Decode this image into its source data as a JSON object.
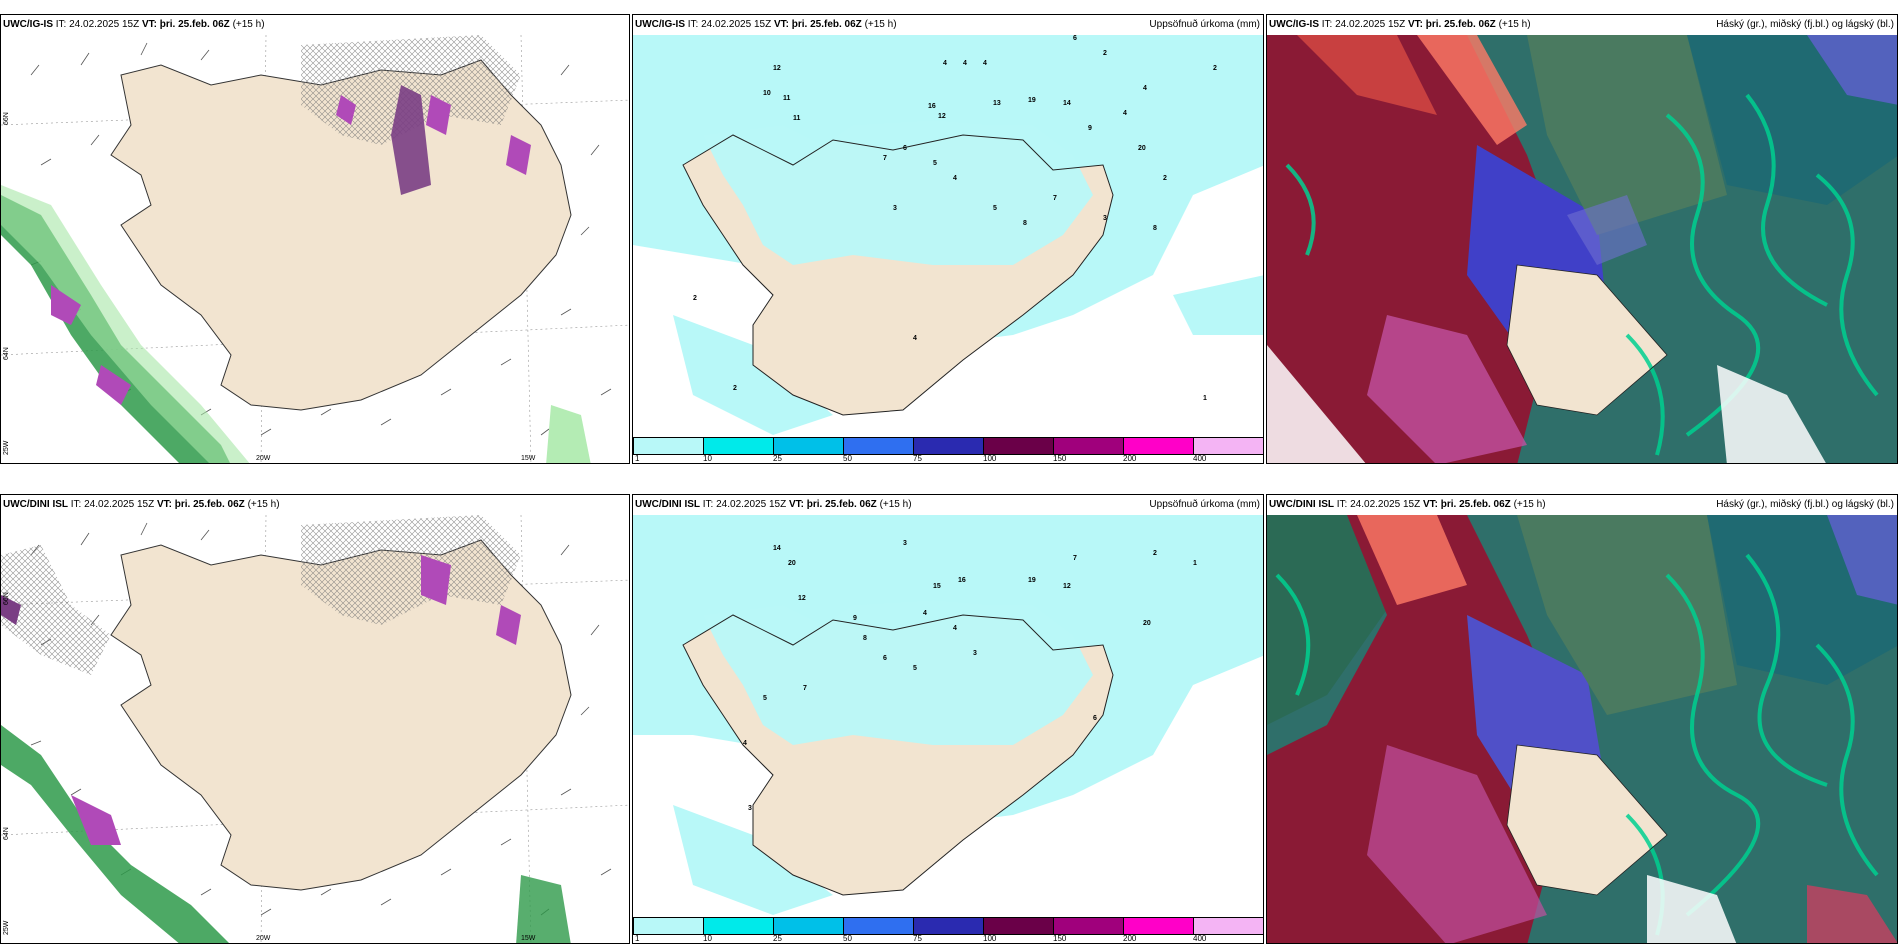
{
  "panels": {
    "p1": {
      "model": "UWC/IG-IS",
      "it": "IT: 24.02.2025 15Z",
      "vt": "VT: þri. 25.feb. 06Z",
      "lead": "(+15 h)",
      "right": ""
    },
    "p2": {
      "model": "UWC/IG-IS",
      "it": "IT: 24.02.2025 15Z",
      "vt": "VT: þri. 25.feb. 06Z",
      "lead": "(+15 h)",
      "right": "Uppsöfnuð úrkoma (mm)"
    },
    "p3": {
      "model": "UWC/IG-IS",
      "it": "IT: 24.02.2025 15Z",
      "vt": "VT: þri. 25.feb. 06Z",
      "lead": "(+15 h)",
      "right": "Háský (gr.), miðský (fj.bl.) og lágský (bl.)"
    },
    "p4": {
      "model": "UWC/DINI ISL",
      "it": "IT: 24.02.2025 15Z",
      "vt": "VT: þri. 25.feb. 06Z",
      "lead": "(+15 h)",
      "right": ""
    },
    "p5": {
      "model": "UWC/DINI ISL",
      "it": "IT: 24.02.2025 15Z",
      "vt": "VT: þri. 25.feb. 06Z",
      "lead": "(+15 h)",
      "right": "Uppsöfnuð úrkoma (mm)"
    },
    "p6": {
      "model": "UWC/DINI ISL",
      "it": "IT: 24.02.2025 15Z",
      "vt": "VT: þri. 25.feb. 06Z",
      "lead": "(+15 h)",
      "right": "Háský (gr.), miðský (fj.bl.) og lágský (bl.)"
    }
  },
  "axis_labels": {
    "lon20": "20W",
    "lon15": "15W",
    "lon25": "25W",
    "lat66": "66N",
    "lat64": "64N"
  },
  "colorbar": {
    "labels": [
      "1",
      "10",
      "25",
      "50",
      "75",
      "100",
      "150",
      "200",
      "400"
    ],
    "colors": [
      "#b8f8f8",
      "#00eaea",
      "#00c0e8",
      "#2f6ff0",
      "#2a2ab0",
      "#6a0048",
      "#a0007c",
      "#ff00c8",
      "#f4b4f4"
    ]
  },
  "precip_labels_top": [
    "4",
    "4",
    "4",
    "6",
    "2",
    "2",
    "4",
    "10",
    "12",
    "11",
    "11",
    "16",
    "12",
    "13",
    "19",
    "14",
    "9",
    "4",
    "3",
    "2",
    "8",
    "7",
    "6",
    "5",
    "4",
    "20",
    "3",
    "1",
    "2",
    "5",
    "8",
    "4",
    "7",
    "2"
  ],
  "precip_labels_bottom": [
    "3",
    "14",
    "20",
    "12",
    "15",
    "16",
    "19",
    "12",
    "7",
    "4",
    "9",
    "8",
    "6",
    "5",
    "4",
    "3",
    "20",
    "2",
    "1",
    "4",
    "3",
    "5",
    "7",
    "6"
  ],
  "colors": {
    "land": "#f2e4d0",
    "precip_light": "#b8f8f8",
    "sea": "#ffffff"
  }
}
